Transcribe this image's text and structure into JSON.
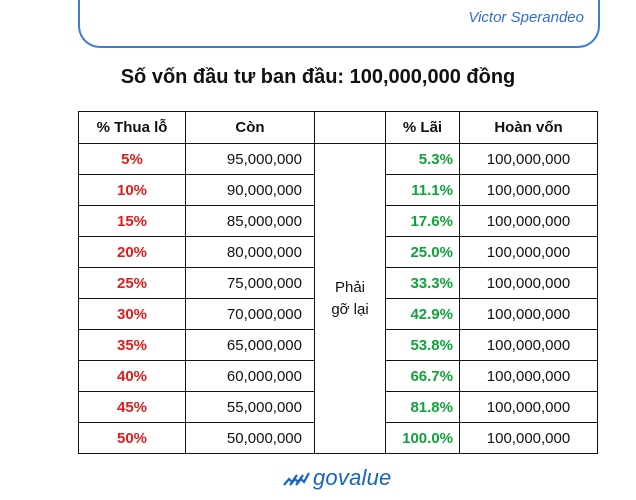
{
  "author": "Victor Sperandeo",
  "title": "Số vốn đầu tư ban đầu: 100,000,000 đồng",
  "headers": [
    "% Thua lỗ",
    "Còn",
    "",
    "% Lãi",
    "Hoàn vốn"
  ],
  "middle_label": [
    "Phải",
    "gỡ lại"
  ],
  "rows": [
    {
      "loss": "5%",
      "remaining": "95,000,000",
      "gain": "5.3%",
      "recover": "100,000,000"
    },
    {
      "loss": "10%",
      "remaining": "90,000,000",
      "gain": "11.1%",
      "recover": "100,000,000"
    },
    {
      "loss": "15%",
      "remaining": "85,000,000",
      "gain": "17.6%",
      "recover": "100,000,000"
    },
    {
      "loss": "20%",
      "remaining": "80,000,000",
      "gain": "25.0%",
      "recover": "100,000,000"
    },
    {
      "loss": "25%",
      "remaining": "75,000,000",
      "gain": "33.3%",
      "recover": "100,000,000"
    },
    {
      "loss": "30%",
      "remaining": "70,000,000",
      "gain": "42.9%",
      "recover": "100,000,000"
    },
    {
      "loss": "35%",
      "remaining": "65,000,000",
      "gain": "53.8%",
      "recover": "100,000,000"
    },
    {
      "loss": "40%",
      "remaining": "60,000,000",
      "gain": "66.7%",
      "recover": "100,000,000"
    },
    {
      "loss": "45%",
      "remaining": "55,000,000",
      "gain": "81.8%",
      "recover": "100,000,000"
    },
    {
      "loss": "50%",
      "remaining": "50,000,000",
      "gain": "100.0%",
      "recover": "100,000,000"
    }
  ],
  "logo": {
    "text": "govalue",
    "icon": "rising-chart-icon"
  },
  "colors": {
    "loss": "#e31b1b",
    "gain": "#0fa33a",
    "brand": "#1565c0",
    "frame": "#3b7bd4"
  }
}
